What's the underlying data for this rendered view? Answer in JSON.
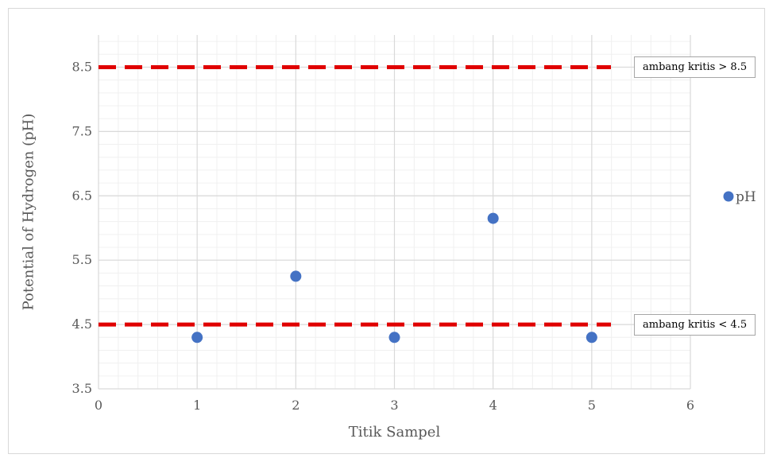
{
  "chart_data": {
    "type": "scatter",
    "title": "",
    "xlabel": "Titik Sampel",
    "ylabel": "Potential of Hydrogen (pH)",
    "xlim": [
      0,
      6
    ],
    "ylim": [
      3.5,
      9
    ],
    "x_ticks": [
      "0",
      "1",
      "2",
      "3",
      "4",
      "5",
      "6"
    ],
    "y_ticks": [
      "3.5",
      "4.5",
      "5.5",
      "6.5",
      "7.5",
      "8.5"
    ],
    "grid": true,
    "legend_position": "right",
    "series": [
      {
        "name": "pH",
        "color": "#4472c4",
        "x": [
          1,
          2,
          3,
          4,
          5
        ],
        "y": [
          4.3,
          5.25,
          4.3,
          6.15,
          4.3
        ]
      }
    ],
    "reference_lines": [
      {
        "y": 8.5,
        "color": "#e00000",
        "style": "dashed",
        "label": "ambang kritis > 8.5"
      },
      {
        "y": 4.5,
        "color": "#e00000",
        "style": "dashed",
        "label": "ambang kritis < 4.5"
      }
    ]
  }
}
